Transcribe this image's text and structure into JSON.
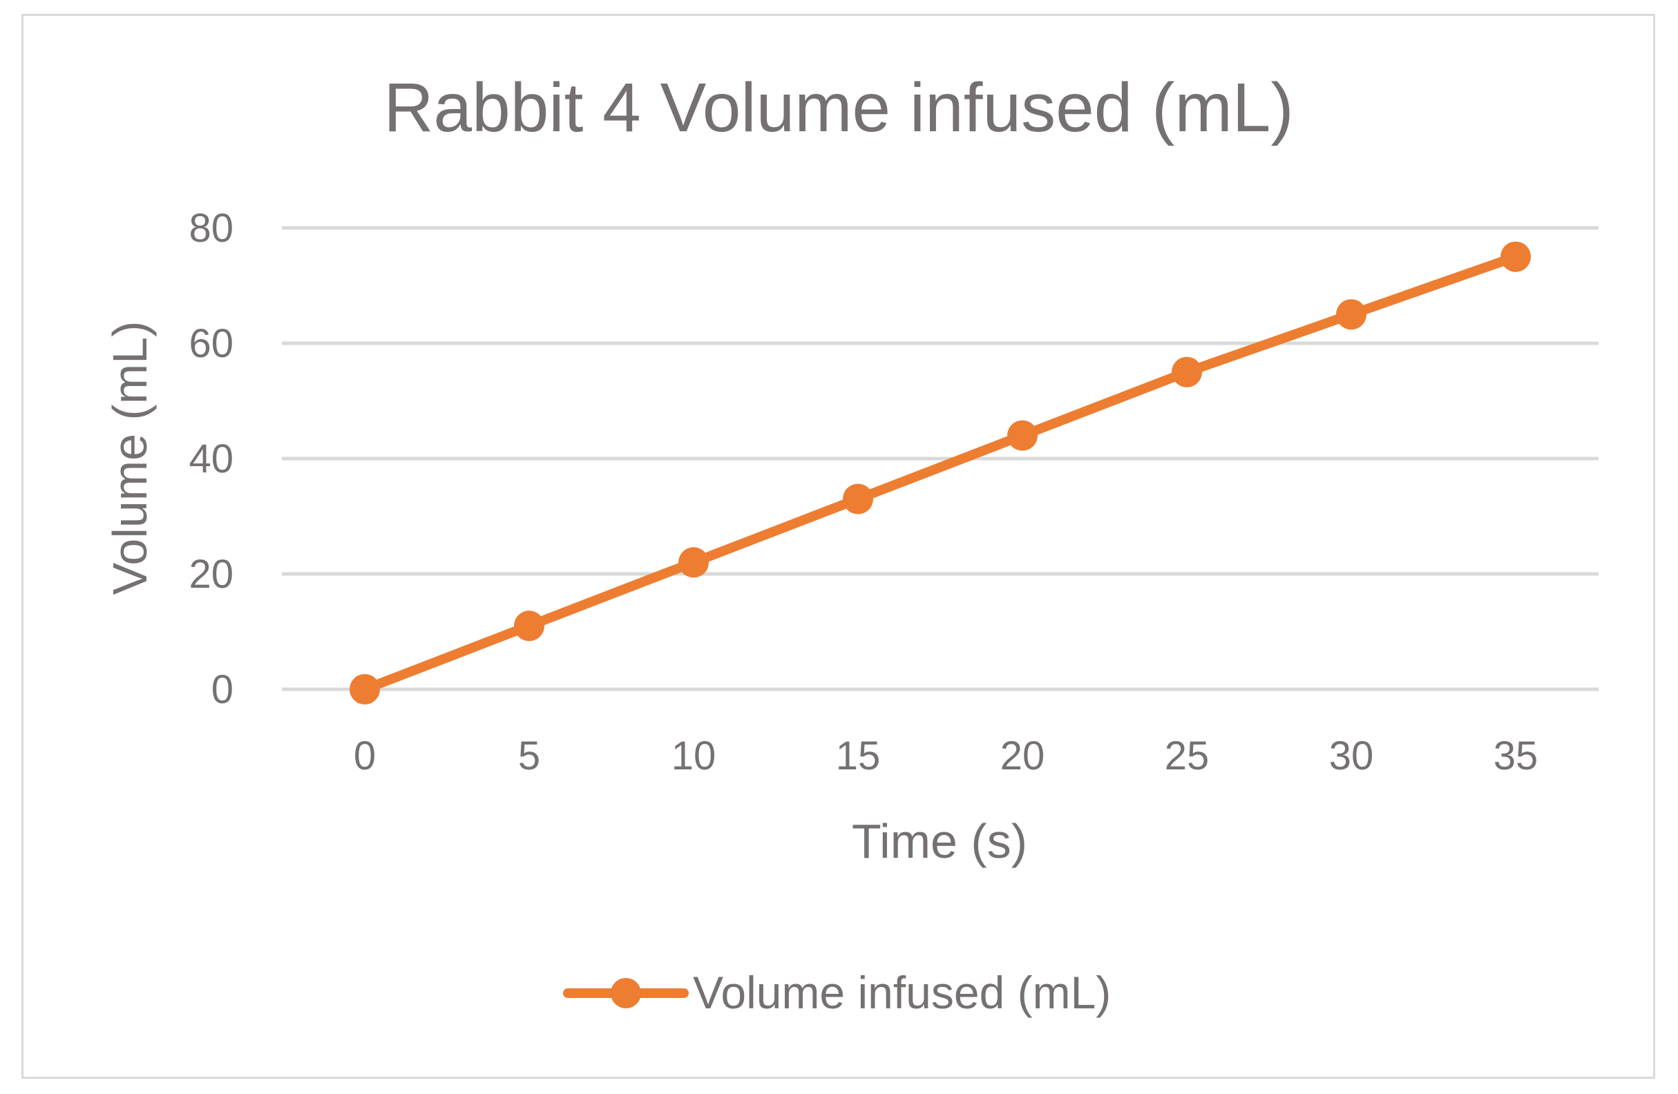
{
  "chart_data": {
    "type": "line",
    "title": "Rabbit 4 Volume infused (mL)",
    "xlabel": "Time (s)",
    "ylabel": "Volume (mL)",
    "x": [
      0,
      5,
      10,
      15,
      20,
      25,
      30,
      35
    ],
    "x_ticks": [
      "0",
      "5",
      "10",
      "15",
      "20",
      "25",
      "30",
      "35"
    ],
    "y_ticks": [
      "0",
      "20",
      "40",
      "60",
      "80"
    ],
    "ylim": [
      0,
      80
    ],
    "grid": true,
    "legend_position": "bottom",
    "series": [
      {
        "name": "Volume infused (mL)",
        "color": "#ed7d31",
        "values": [
          0,
          11,
          22,
          33,
          44,
          55,
          65,
          75
        ]
      }
    ]
  }
}
